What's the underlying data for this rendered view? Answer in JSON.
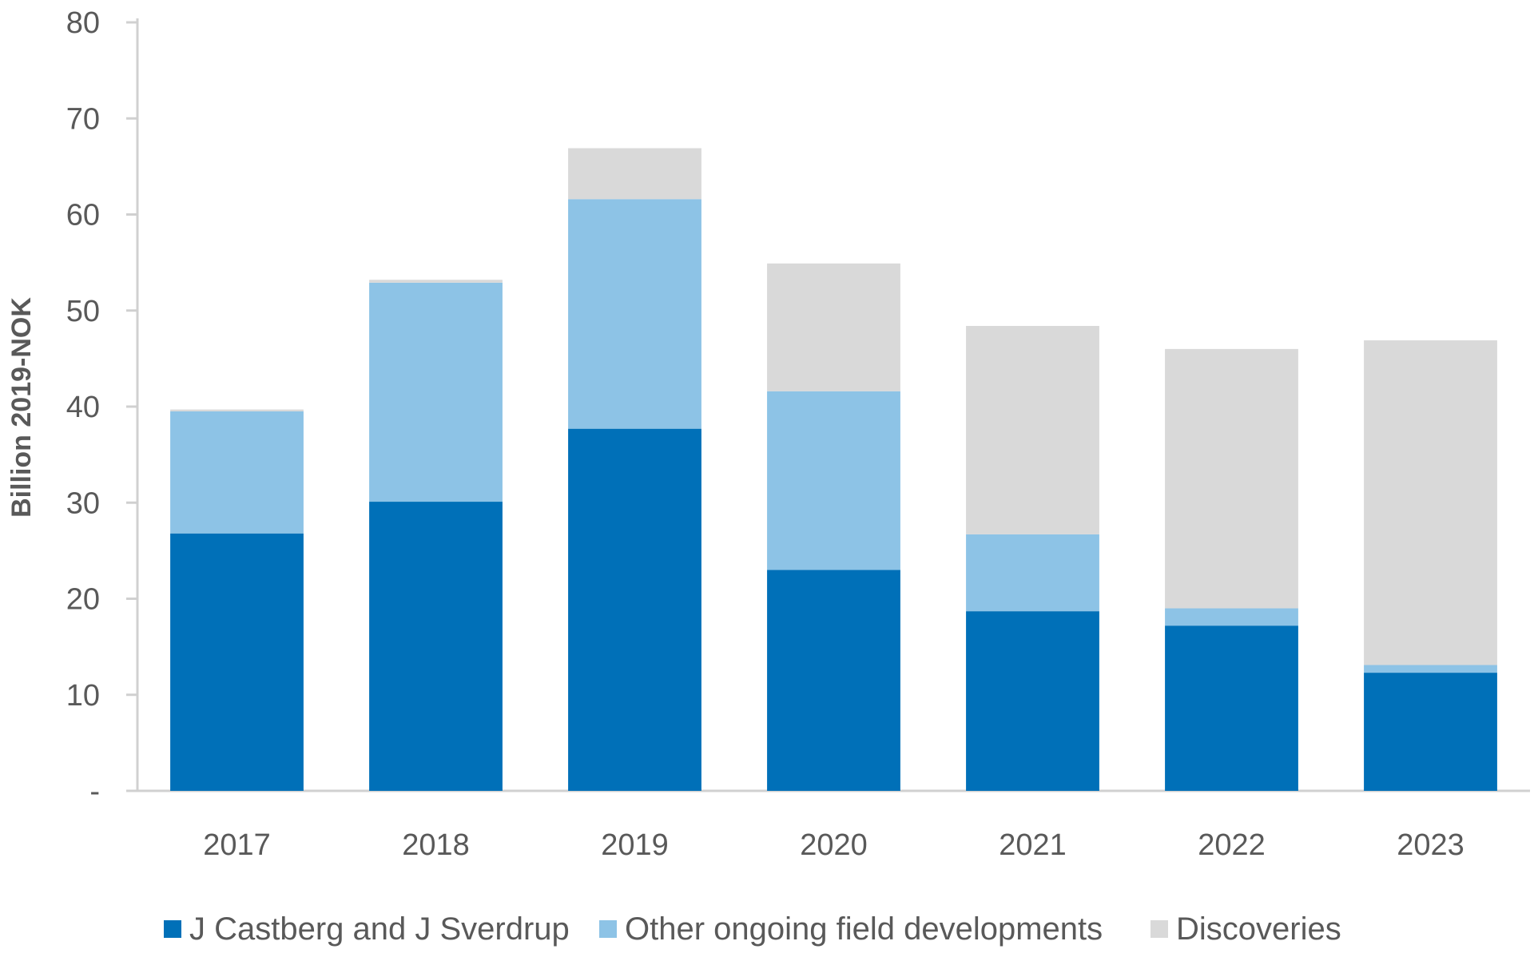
{
  "chart_data": {
    "type": "bar",
    "stacked": true,
    "title": "",
    "xlabel": "",
    "ylabel": "Billion 2019-NOK",
    "ylim": [
      0,
      80
    ],
    "yticks": [
      0,
      10,
      20,
      30,
      40,
      50,
      60,
      70,
      80
    ],
    "ytick_labels": [
      "-",
      "10",
      "20",
      "30",
      "40",
      "50",
      "60",
      "70",
      "80"
    ],
    "categories": [
      "2017",
      "2018",
      "2019",
      "2020",
      "2021",
      "2022",
      "2023"
    ],
    "grid": false,
    "legend_position": "bottom",
    "series": [
      {
        "name": "J Castberg and J Sverdrup",
        "color": "#0070B8",
        "values": [
          26.8,
          30.1,
          37.7,
          23.0,
          18.7,
          17.2,
          12.3
        ]
      },
      {
        "name": "Other ongoing field developments",
        "color": "#8DC3E6",
        "values": [
          12.7,
          22.8,
          23.9,
          18.6,
          8.0,
          1.8,
          0.8
        ]
      },
      {
        "name": "Discoveries",
        "color": "#D9D9D9",
        "values": [
          0.2,
          0.3,
          5.3,
          13.3,
          21.7,
          27.0,
          33.8
        ]
      }
    ]
  }
}
